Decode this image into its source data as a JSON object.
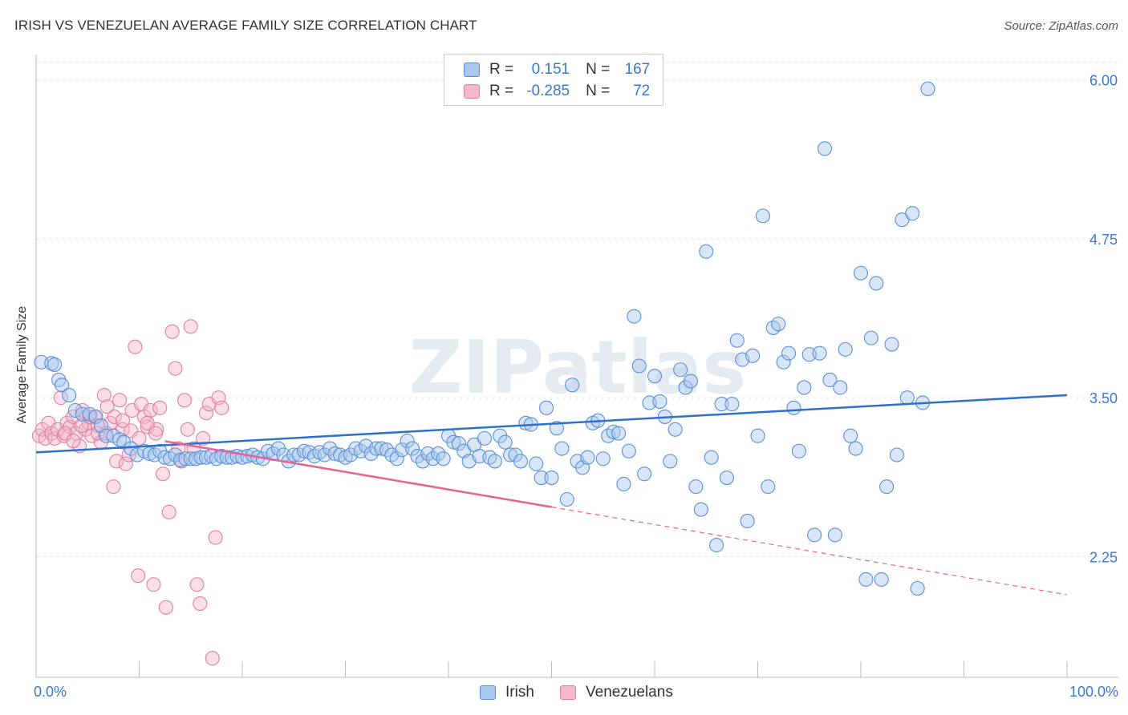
{
  "title": "IRISH VS VENEZUELAN AVERAGE FAMILY SIZE CORRELATION CHART",
  "source": "Source: ZipAtlas.com",
  "watermark": "ZIPatlas",
  "legend": {
    "r_label": "R =",
    "n_label": "N =",
    "rows": [
      {
        "r": "0.151",
        "n": "167",
        "fill": "#a9c8f0",
        "stroke": "#5b8fd6"
      },
      {
        "r": "-0.285",
        "n": "72",
        "fill": "#f5b8cb",
        "stroke": "#e07fa0"
      }
    ]
  },
  "bottom_legend": [
    {
      "label": "Irish",
      "fill": "#a9c8f0",
      "stroke": "#5b8fd6"
    },
    {
      "label": "Venezuelans",
      "fill": "#f5b8cb",
      "stroke": "#e07fa0"
    }
  ],
  "chart_data": {
    "type": "scatter",
    "title": "IRISH VS VENEZUELAN AVERAGE FAMILY SIZE CORRELATION CHART",
    "xlabel": "",
    "ylabel": "Average Family Size",
    "x_tick_labels": [
      "0.0%",
      "100.0%"
    ],
    "y_ticks": [
      6.0,
      4.75,
      3.5,
      2.25
    ],
    "y_tick_labels": [
      "6.00",
      "4.75",
      "3.50",
      "2.25"
    ],
    "xlim": [
      0,
      100
    ],
    "ylim": [
      1.3,
      6.2
    ],
    "grid": true,
    "legend_position": "top-center",
    "series": [
      {
        "name": "Irish",
        "color": "#5b8fd6",
        "trend": {
          "x0": 0,
          "y0": 3.07,
          "x1": 100,
          "y1": 3.52
        },
        "points": [
          [
            0.5,
            3.78
          ],
          [
            1.5,
            3.77
          ],
          [
            1.8,
            3.76
          ],
          [
            2.2,
            3.64
          ],
          [
            2.5,
            3.6
          ],
          [
            3.2,
            3.52
          ],
          [
            3.8,
            3.4
          ],
          [
            4.5,
            3.37
          ],
          [
            5.2,
            3.37
          ],
          [
            5.8,
            3.35
          ],
          [
            6.3,
            3.28
          ],
          [
            6.8,
            3.2
          ],
          [
            7.5,
            3.2
          ],
          [
            8.1,
            3.17
          ],
          [
            8.5,
            3.15
          ],
          [
            9.2,
            3.1
          ],
          [
            9.8,
            3.05
          ],
          [
            10.5,
            3.08
          ],
          [
            11,
            3.06
          ],
          [
            11.5,
            3.05
          ],
          [
            12,
            3.08
          ],
          [
            12.5,
            3.03
          ],
          [
            13,
            3.02
          ],
          [
            13.5,
            3.05
          ],
          [
            14,
            3.01
          ],
          [
            14.5,
            3.02
          ],
          [
            15,
            3.02
          ],
          [
            15.5,
            3.02
          ],
          [
            16,
            3.03
          ],
          [
            16.5,
            3.03
          ],
          [
            17,
            3.04
          ],
          [
            17.5,
            3.02
          ],
          [
            18,
            3.04
          ],
          [
            18.5,
            3.03
          ],
          [
            19,
            3.03
          ],
          [
            19.5,
            3.04
          ],
          [
            20,
            3.03
          ],
          [
            20.5,
            3.04
          ],
          [
            21,
            3.05
          ],
          [
            21.5,
            3.03
          ],
          [
            22,
            3.02
          ],
          [
            22.5,
            3.08
          ],
          [
            23,
            3.06
          ],
          [
            23.5,
            3.1
          ],
          [
            24,
            3.05
          ],
          [
            24.5,
            3.0
          ],
          [
            25,
            3.05
          ],
          [
            25.5,
            3.05
          ],
          [
            26,
            3.08
          ],
          [
            26.5,
            3.07
          ],
          [
            27,
            3.04
          ],
          [
            27.5,
            3.07
          ],
          [
            28,
            3.05
          ],
          [
            28.5,
            3.1
          ],
          [
            29,
            3.06
          ],
          [
            29.5,
            3.05
          ],
          [
            30,
            3.03
          ],
          [
            30.5,
            3.05
          ],
          [
            31,
            3.1
          ],
          [
            31.5,
            3.08
          ],
          [
            32,
            3.12
          ],
          [
            32.5,
            3.06
          ],
          [
            33,
            3.1
          ],
          [
            33.5,
            3.1
          ],
          [
            34,
            3.09
          ],
          [
            34.5,
            3.05
          ],
          [
            35,
            3.02
          ],
          [
            35.5,
            3.09
          ],
          [
            36,
            3.16
          ],
          [
            36.5,
            3.1
          ],
          [
            37,
            3.04
          ],
          [
            37.5,
            3.0
          ],
          [
            38,
            3.06
          ],
          [
            38.5,
            3.02
          ],
          [
            39,
            3.06
          ],
          [
            39.5,
            3.02
          ],
          [
            40,
            3.2
          ],
          [
            40.5,
            3.15
          ],
          [
            41,
            3.14
          ],
          [
            41.5,
            3.08
          ],
          [
            42,
            3.0
          ],
          [
            42.5,
            3.13
          ],
          [
            43,
            3.04
          ],
          [
            43.5,
            3.18
          ],
          [
            44,
            3.03
          ],
          [
            44.5,
            3.0
          ],
          [
            45,
            3.2
          ],
          [
            45.5,
            3.15
          ],
          [
            46,
            3.05
          ],
          [
            46.5,
            3.05
          ],
          [
            47,
            3.0
          ],
          [
            47.5,
            3.3
          ],
          [
            48,
            3.29
          ],
          [
            48.5,
            2.98
          ],
          [
            49,
            2.87
          ],
          [
            49.5,
            3.42
          ],
          [
            50,
            2.87
          ],
          [
            50.5,
            3.26
          ],
          [
            51,
            3.1
          ],
          [
            51.5,
            2.7
          ],
          [
            52,
            3.6
          ],
          [
            52.5,
            3.0
          ],
          [
            53,
            2.95
          ],
          [
            53.5,
            3.03
          ],
          [
            54,
            3.3
          ],
          [
            54.5,
            3.32
          ],
          [
            55,
            3.02
          ],
          [
            55.5,
            3.2
          ],
          [
            56,
            3.23
          ],
          [
            56.5,
            3.22
          ],
          [
            57,
            2.82
          ],
          [
            57.5,
            3.08
          ],
          [
            58,
            4.14
          ],
          [
            58.5,
            3.75
          ],
          [
            59,
            2.9
          ],
          [
            59.5,
            3.46
          ],
          [
            60,
            3.67
          ],
          [
            60.5,
            3.47
          ],
          [
            61,
            3.35
          ],
          [
            61.5,
            3.0
          ],
          [
            62,
            3.25
          ],
          [
            62.5,
            3.72
          ],
          [
            63,
            3.58
          ],
          [
            63.5,
            3.63
          ],
          [
            64,
            2.8
          ],
          [
            64.5,
            2.62
          ],
          [
            65,
            4.65
          ],
          [
            65.5,
            3.03
          ],
          [
            66,
            2.34
          ],
          [
            66.5,
            3.45
          ],
          [
            67,
            2.87
          ],
          [
            67.5,
            3.45
          ],
          [
            68,
            3.95
          ],
          [
            68.5,
            3.8
          ],
          [
            69,
            2.53
          ],
          [
            69.5,
            3.83
          ],
          [
            70,
            3.2
          ],
          [
            70.5,
            4.93
          ],
          [
            71,
            2.8
          ],
          [
            71.5,
            4.05
          ],
          [
            72,
            4.08
          ],
          [
            72.5,
            3.78
          ],
          [
            73,
            3.85
          ],
          [
            73.5,
            3.42
          ],
          [
            74,
            3.08
          ],
          [
            74.5,
            3.58
          ],
          [
            75,
            3.84
          ],
          [
            75.5,
            2.42
          ],
          [
            76,
            3.85
          ],
          [
            76.5,
            5.46
          ],
          [
            77,
            3.64
          ],
          [
            77.5,
            2.42
          ],
          [
            78,
            3.58
          ],
          [
            78.5,
            3.88
          ],
          [
            79,
            3.2
          ],
          [
            79.5,
            3.1
          ],
          [
            80,
            4.48
          ],
          [
            80.5,
            2.07
          ],
          [
            81,
            3.97
          ],
          [
            81.5,
            4.4
          ],
          [
            82,
            2.07
          ],
          [
            82.5,
            2.8
          ],
          [
            83,
            3.92
          ],
          [
            83.5,
            3.05
          ],
          [
            84,
            4.9
          ],
          [
            84.5,
            3.5
          ],
          [
            85,
            4.95
          ],
          [
            85.5,
            2.0
          ],
          [
            86,
            3.46
          ],
          [
            86.5,
            5.93
          ]
        ]
      },
      {
        "name": "Venezuelans",
        "color": "#e07fa0",
        "trend": {
          "x0": 0,
          "y0": 3.33,
          "x1": 100,
          "y1": 1.95,
          "solid_until": 50
        },
        "points": [
          [
            0.3,
            3.2
          ],
          [
            0.6,
            3.25
          ],
          [
            0.9,
            3.18
          ],
          [
            1.2,
            3.3
          ],
          [
            1.5,
            3.22
          ],
          [
            1.8,
            3.18
          ],
          [
            2.1,
            3.25
          ],
          [
            2.4,
            3.5
          ],
          [
            2.7,
            3.2
          ],
          [
            3.0,
            3.3
          ],
          [
            3.3,
            3.27
          ],
          [
            3.6,
            3.35
          ],
          [
            3.9,
            3.22
          ],
          [
            4.2,
            3.12
          ],
          [
            4.5,
            3.4
          ],
          [
            4.8,
            3.25
          ],
          [
            5.1,
            3.3
          ],
          [
            5.4,
            3.2
          ],
          [
            5.7,
            3.35
          ],
          [
            6.0,
            3.28
          ],
          [
            6.3,
            3.15
          ],
          [
            6.6,
            3.52
          ],
          [
            6.9,
            3.43
          ],
          [
            7.2,
            3.3
          ],
          [
            7.5,
            2.8
          ],
          [
            7.8,
            3.0
          ],
          [
            8.1,
            3.48
          ],
          [
            8.4,
            3.25
          ],
          [
            8.7,
            2.98
          ],
          [
            9.0,
            3.05
          ],
          [
            9.3,
            3.4
          ],
          [
            9.6,
            3.9
          ],
          [
            9.9,
            2.1
          ],
          [
            10.2,
            3.45
          ],
          [
            10.5,
            3.35
          ],
          [
            10.8,
            3.27
          ],
          [
            11.1,
            3.4
          ],
          [
            11.4,
            2.03
          ],
          [
            11.7,
            3.25
          ],
          [
            12.0,
            3.42
          ],
          [
            12.3,
            2.9
          ],
          [
            12.6,
            1.85
          ],
          [
            12.9,
            2.6
          ],
          [
            13.2,
            4.02
          ],
          [
            13.5,
            3.73
          ],
          [
            13.8,
            3.1
          ],
          [
            14.1,
            3.0
          ],
          [
            14.4,
            3.48
          ],
          [
            14.7,
            3.25
          ],
          [
            15.0,
            4.06
          ],
          [
            15.3,
            3.1
          ],
          [
            15.6,
            2.03
          ],
          [
            15.9,
            1.88
          ],
          [
            16.2,
            3.18
          ],
          [
            16.5,
            3.38
          ],
          [
            16.8,
            3.45
          ],
          [
            17.1,
            1.45
          ],
          [
            17.4,
            2.4
          ],
          [
            17.7,
            3.5
          ],
          [
            18.0,
            3.42
          ],
          [
            2.8,
            3.22
          ],
          [
            3.6,
            3.16
          ],
          [
            4.4,
            3.28
          ],
          [
            5.2,
            3.35
          ],
          [
            6.0,
            3.22
          ],
          [
            6.8,
            3.22
          ],
          [
            7.6,
            3.35
          ],
          [
            8.4,
            3.32
          ],
          [
            9.2,
            3.24
          ],
          [
            10.0,
            3.18
          ],
          [
            10.8,
            3.3
          ],
          [
            11.6,
            3.22
          ]
        ]
      }
    ]
  }
}
